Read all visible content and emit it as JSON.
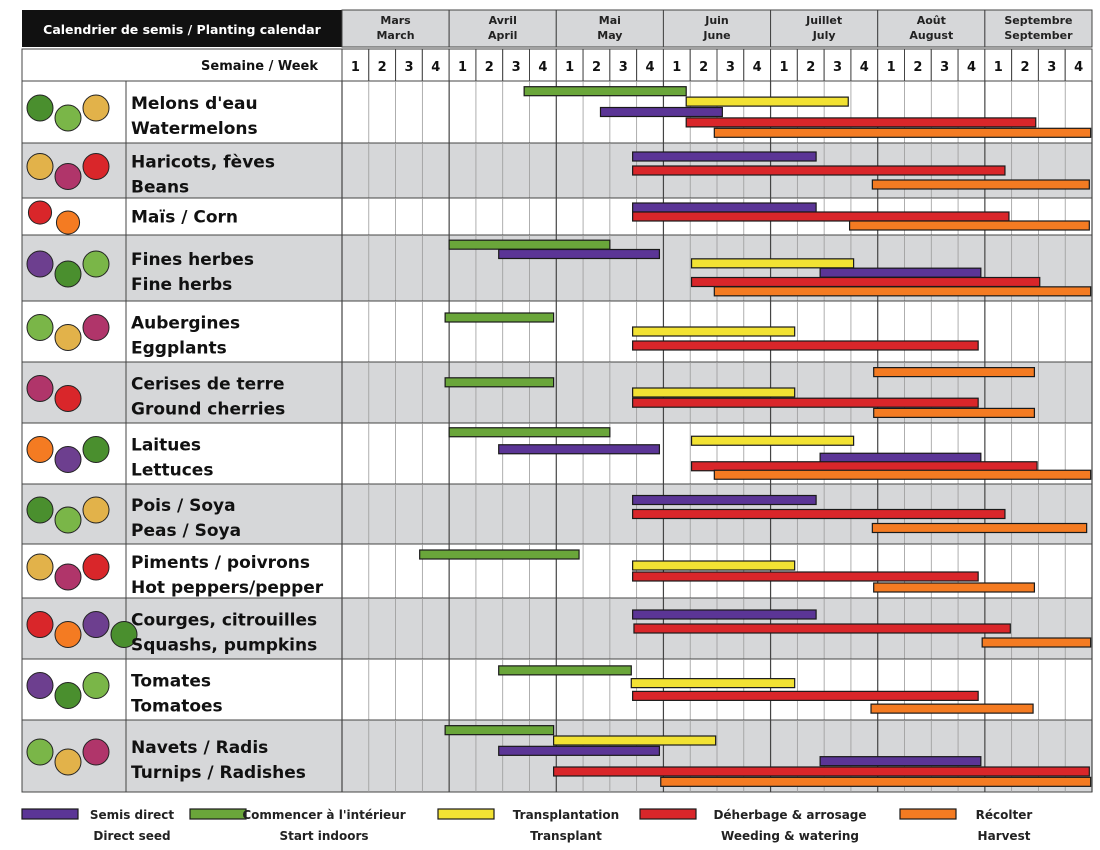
{
  "header": {
    "title": "Calendrier de semis / Planting calendar",
    "week_label": "Semaine / Week"
  },
  "colors": {
    "direct_seed": "#5b3596",
    "start_indoors": "#6aa63a",
    "transplant": "#f2e233",
    "weeding": "#d9262a",
    "harvest": "#f47b22",
    "header_bg": "#111111",
    "row_alt": "#d6d7d9"
  },
  "months": [
    {
      "fr": "Mars",
      "en": "March"
    },
    {
      "fr": "Avril",
      "en": "April"
    },
    {
      "fr": "Mai",
      "en": "May"
    },
    {
      "fr": "Juin",
      "en": "June"
    },
    {
      "fr": "Juillet",
      "en": "July"
    },
    {
      "fr": "Août",
      "en": "August"
    },
    {
      "fr": "Septembre",
      "en": "September"
    }
  ],
  "week_numbers": [
    "1",
    "2",
    "3",
    "4"
  ],
  "legend": [
    {
      "key": "direct_seed",
      "fr": "Semis direct",
      "en": "Direct seed"
    },
    {
      "key": "start_indoors",
      "fr": "Commencer à l'intérieur",
      "en": "Start indoors"
    },
    {
      "key": "transplant",
      "fr": "Transplantation",
      "en": "Transplant"
    },
    {
      "key": "weeding",
      "fr": "Déherbage & arrosage",
      "en": "Weeding & watering"
    },
    {
      "key": "harvest",
      "fr": "Récolter",
      "en": "Harvest"
    }
  ],
  "chart_data": {
    "type": "gantt",
    "title": "Calendrier de semis / Planting calendar",
    "x_unit": "week (Mars week 1 = 0, Septembre week 4 = 28)",
    "xlim": [
      0,
      28
    ],
    "rows": [
      {
        "label_fr": "Melons d'eau",
        "label_en": "Watermelons",
        "icons": [
          "watermelon-icon",
          "melon-icon",
          "cantaloupe-icon"
        ],
        "bars": [
          {
            "type": "start_indoors",
            "start": 6.8,
            "end": 12.85
          },
          {
            "type": "transplant",
            "start": 12.85,
            "end": 18.9
          },
          {
            "type": "direct_seed",
            "start": 9.65,
            "end": 14.2
          },
          {
            "type": "weeding",
            "start": 12.85,
            "end": 25.9
          },
          {
            "type": "harvest",
            "start": 13.9,
            "end": 27.95
          }
        ]
      },
      {
        "label_fr": "Haricots, fèves",
        "label_en": "Beans",
        "icons": [
          "bean-icon",
          "fava-bean-icon",
          "kidney-bean-icon"
        ],
        "bars": [
          {
            "type": "direct_seed",
            "start": 10.85,
            "end": 17.7
          },
          {
            "type": "weeding",
            "start": 10.85,
            "end": 24.75
          },
          {
            "type": "harvest",
            "start": 19.8,
            "end": 27.9
          }
        ]
      },
      {
        "label_fr": "Maïs / Corn",
        "label_en": "",
        "icons": [
          "corn-icon",
          "popcorn-icon"
        ],
        "bars": [
          {
            "type": "direct_seed",
            "start": 10.85,
            "end": 17.7
          },
          {
            "type": "weeding",
            "start": 10.85,
            "end": 24.9
          },
          {
            "type": "harvest",
            "start": 18.95,
            "end": 27.9
          }
        ]
      },
      {
        "label_fr": "Fines herbes",
        "label_en": "Fine herbs",
        "icons": [
          "herb-bundle-icon",
          "basil-icon",
          "parsley-icon"
        ],
        "bars": [
          {
            "type": "start_indoors",
            "start": 4.0,
            "end": 10.0
          },
          {
            "type": "direct_seed",
            "start": 5.85,
            "end": 11.85
          },
          {
            "type": "transplant",
            "start": 13.05,
            "end": 19.1
          },
          {
            "type": "direct_seed",
            "start": 17.85,
            "end": 23.85
          },
          {
            "type": "weeding",
            "start": 13.05,
            "end": 26.05
          },
          {
            "type": "harvest",
            "start": 13.9,
            "end": 27.95
          }
        ]
      },
      {
        "label_fr": "Aubergines",
        "label_en": "Eggplants",
        "icons": [
          "eggplant-icon",
          "purple-eggplant-icon",
          "round-eggplant-icon"
        ],
        "bars": [
          {
            "type": "start_indoors",
            "start": 3.85,
            "end": 7.9
          },
          {
            "type": "transplant",
            "start": 10.85,
            "end": 16.9
          },
          {
            "type": "weeding",
            "start": 10.85,
            "end": 23.75
          }
        ]
      },
      {
        "label_fr": "Cerises de terre",
        "label_en": "Ground cherries",
        "icons": [
          "ground-cherry-icon",
          "physalis-icon"
        ],
        "bars": [
          {
            "type": "harvest",
            "start": 19.85,
            "end": 25.85
          },
          {
            "type": "start_indoors",
            "start": 3.85,
            "end": 7.9
          },
          {
            "type": "transplant",
            "start": 10.85,
            "end": 16.9
          },
          {
            "type": "weeding",
            "start": 10.85,
            "end": 23.75
          },
          {
            "type": "harvest",
            "start": 19.85,
            "end": 25.85
          }
        ]
      },
      {
        "label_fr": "Laitues",
        "label_en": "Lettuces",
        "icons": [
          "red-lettuce-icon",
          "lettuce-icon",
          "romaine-icon"
        ],
        "bars": [
          {
            "type": "start_indoors",
            "start": 4.0,
            "end": 10.0
          },
          {
            "type": "transplant",
            "start": 13.05,
            "end": 19.1
          },
          {
            "type": "direct_seed",
            "start": 5.85,
            "end": 11.85
          },
          {
            "type": "direct_seed",
            "start": 17.85,
            "end": 23.85
          },
          {
            "type": "weeding",
            "start": 13.05,
            "end": 25.95
          },
          {
            "type": "harvest",
            "start": 13.9,
            "end": 27.95
          }
        ]
      },
      {
        "label_fr": "Pois / Soya",
        "label_en": "Peas / Soya",
        "icons": [
          "pea-pod-icon",
          "soy-pod-icon",
          "bean-pod-icon"
        ],
        "bars": [
          {
            "type": "direct_seed",
            "start": 10.85,
            "end": 17.7
          },
          {
            "type": "weeding",
            "start": 10.85,
            "end": 24.75
          },
          {
            "type": "harvest",
            "start": 19.8,
            "end": 27.8
          }
        ]
      },
      {
        "label_fr": "Piments / poivrons",
        "label_en": "Hot peppers/pepper",
        "icons": [
          "chili-icon",
          "green-pepper-icon",
          "red-pepper-icon"
        ],
        "bars": [
          {
            "type": "start_indoors",
            "start": 2.9,
            "end": 8.85
          },
          {
            "type": "transplant",
            "start": 10.85,
            "end": 16.9
          },
          {
            "type": "weeding",
            "start": 10.85,
            "end": 23.75
          },
          {
            "type": "harvest",
            "start": 19.85,
            "end": 25.85
          }
        ]
      },
      {
        "label_fr": "Courges, citrouilles",
        "label_en": "Squashs, pumpkins",
        "icons": [
          "zucchini-icon",
          "pumpkin-icon",
          "butternut-icon",
          "acorn-squash-icon"
        ],
        "bars": [
          {
            "type": "direct_seed",
            "start": 10.85,
            "end": 17.7
          },
          {
            "type": "weeding",
            "start": 10.9,
            "end": 24.95
          },
          {
            "type": "harvest",
            "start": 23.9,
            "end": 27.95
          }
        ]
      },
      {
        "label_fr": "Tomates",
        "label_en": "Tomatoes",
        "icons": [
          "tomato-icon",
          "cherry-tomato-icon",
          "orange-tomato-icon"
        ],
        "bars": [
          {
            "type": "start_indoors",
            "start": 5.85,
            "end": 10.8
          },
          {
            "type": "transplant",
            "start": 10.8,
            "end": 16.9
          },
          {
            "type": "weeding",
            "start": 10.85,
            "end": 23.75
          },
          {
            "type": "harvest",
            "start": 19.75,
            "end": 25.8
          }
        ]
      },
      {
        "label_fr": "Navets / Radis",
        "label_en": "Turnips / Radishes",
        "icons": [
          "spinach-icon",
          "radish-icon",
          "turnip-icon"
        ],
        "bars": [
          {
            "type": "start_indoors",
            "start": 3.85,
            "end": 7.9
          },
          {
            "type": "transplant",
            "start": 7.9,
            "end": 13.95
          },
          {
            "type": "direct_seed",
            "start": 5.85,
            "end": 11.85
          },
          {
            "type": "direct_seed",
            "start": 17.85,
            "end": 23.85
          },
          {
            "type": "weeding",
            "start": 7.9,
            "end": 27.9
          },
          {
            "type": "harvest",
            "start": 11.9,
            "end": 27.95
          }
        ]
      }
    ]
  }
}
